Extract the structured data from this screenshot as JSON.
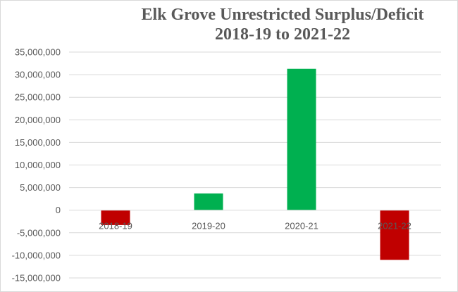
{
  "chart_data": {
    "type": "bar",
    "title_lines": [
      "Elk Grove Unrestricted Surplus/Deficit",
      "2018-19 to 2021-22"
    ],
    "categories": [
      "2018-19",
      "2019-20",
      "2020-21",
      "2021-22"
    ],
    "values": [
      -3300000,
      3700000,
      31300000,
      -11000000
    ],
    "bar_colors": [
      "#c00000",
      "#00b050",
      "#00b050",
      "#c00000"
    ],
    "ylim": [
      -15000000,
      35000000
    ],
    "yticks": [
      35000000,
      30000000,
      25000000,
      20000000,
      15000000,
      10000000,
      5000000,
      0,
      -5000000,
      -10000000,
      -15000000
    ],
    "ytick_labels": [
      "35,000,000",
      "30,000,000",
      "25,000,000",
      "20,000,000",
      "15,000,000",
      "10,000,000",
      "5,000,000",
      "0",
      "-5,000,000",
      "-10,000,000",
      "-15,000,000"
    ],
    "grid": true,
    "gridline_color": "#d9d9d9",
    "legend": "none"
  }
}
